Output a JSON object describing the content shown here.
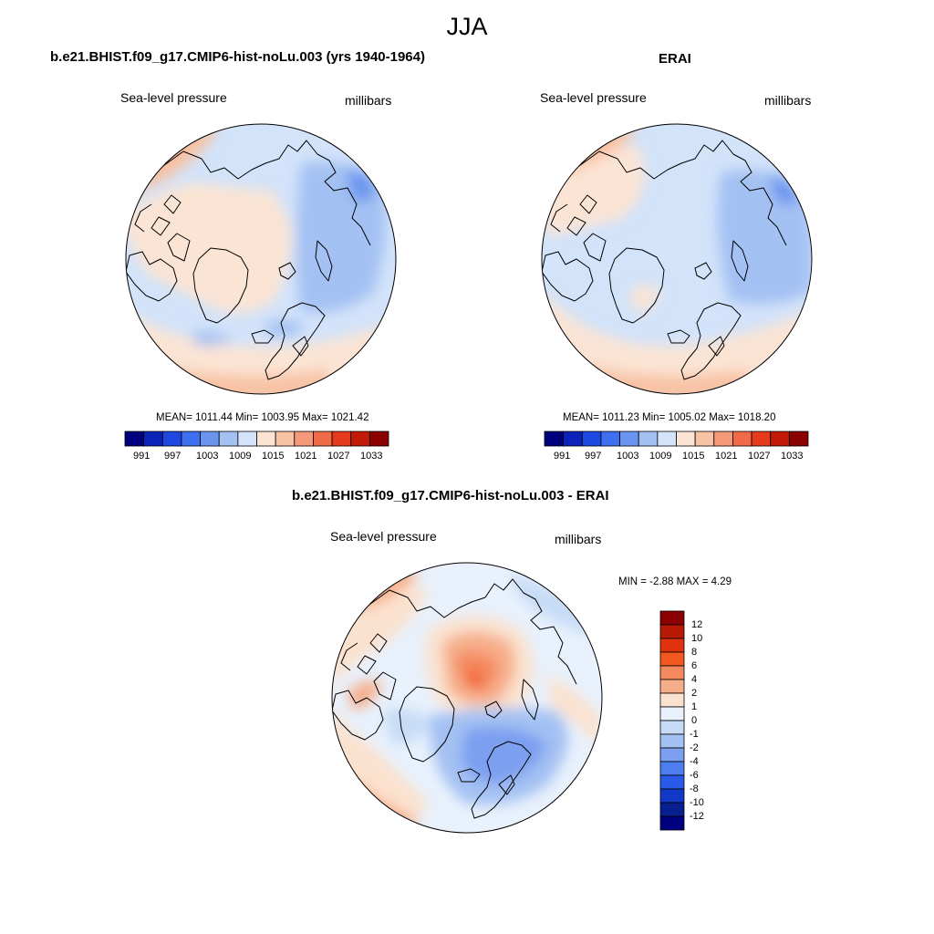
{
  "figure": {
    "season": "JJA",
    "panels": [
      {
        "title": "b.e21.BHIST.f09_g17.CMIP6-hist-noLu.003 (yrs 1940-1964)",
        "variable": "Sea-level pressure",
        "units": "millibars",
        "stats_text": "MEAN= 1011.44  Min= 1003.95  Max= 1021.42",
        "colorbar_ticks": [
          "991",
          "997",
          "1003",
          "1009",
          "1015",
          "1021",
          "1027",
          "1033"
        ]
      },
      {
        "title": "ERAI",
        "variable": "Sea-level pressure",
        "units": "millibars",
        "stats_text": "MEAN= 1011.23  Min= 1005.02  Max= 1018.20",
        "colorbar_ticks": [
          "991",
          "997",
          "1003",
          "1009",
          "1015",
          "1021",
          "1027",
          "1033"
        ]
      }
    ],
    "difference": {
      "title": "b.e21.BHIST.f09_g17.CMIP6-hist-noLu.003 - ERAI",
      "variable": "Sea-level pressure",
      "units": "millibars",
      "minmax_text": "MIN =  -2.88 MAX =   4.29",
      "colorbar_labels": [
        "12",
        "10",
        "8",
        "6",
        "4",
        "2",
        "1",
        "0",
        "-1",
        "-2",
        "-4",
        "-6",
        "-8",
        "-10",
        "-12"
      ]
    }
  },
  "palette": {
    "abs_scale": [
      "#00007f",
      "#0c23b8",
      "#1f48e0",
      "#3d6ff0",
      "#6a95ef",
      "#a4c1f3",
      "#d2e3fa",
      "#fbe4d4",
      "#f8c2a4",
      "#f49a7a",
      "#f06a48",
      "#e63a1c",
      "#c21a06",
      "#8b0000"
    ],
    "diff_scale": [
      "#8b0000",
      "#b81a06",
      "#e0320e",
      "#f2581f",
      "#f4895e",
      "#f6ae8a",
      "#fbe2cf",
      "#e8f1fc",
      "#c6dbf6",
      "#a4c1f3",
      "#7c9ff0",
      "#4d7ef0",
      "#2a5ae8",
      "#1238c8",
      "#08208f",
      "#00007f"
    ],
    "land_outline": "#000000"
  }
}
